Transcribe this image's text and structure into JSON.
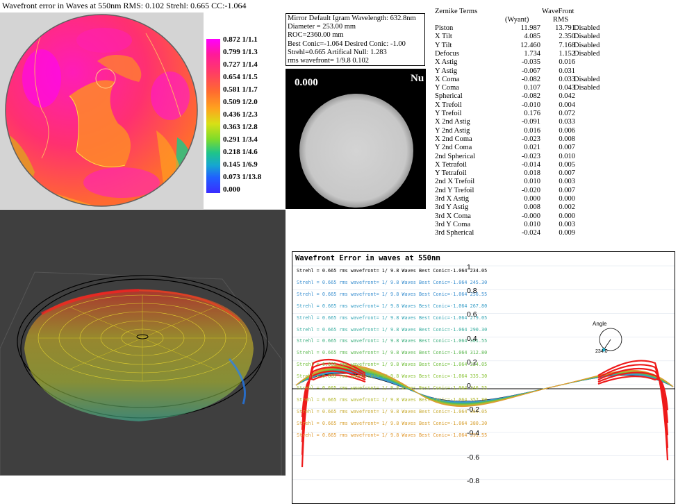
{
  "header": {
    "title": "Wavefront error in Waves at 550nm   RMS: 0.102 Strehl: 0.665 CC:-1.064"
  },
  "legend": {
    "labels": [
      "0.872 1/1.1",
      "0.799 1/1.3",
      "0.727 1/1.4",
      "0.654 1/1.5",
      "0.581 1/1.7",
      "0.509 1/2.0",
      "0.436 1/2.3",
      "0.363 1/2.8",
      "0.291 1/3.4",
      "0.218 1/4.6",
      "0.145 1/6.9",
      "0.073 1/13.8",
      "0.000"
    ]
  },
  "info": {
    "lines": [
      "Mirror Default Igram Wavelength:  632.8nm",
      "Diameter = 253.00 mm",
      "ROC=2360.00 mm",
      "Best Conic=-1.064 Desired Conic:  -1.00",
      " Strehl=0.665  Artifical Null:  1.283",
      "rms wavefront= 1/9.8  0.102"
    ]
  },
  "igram": {
    "value": "0.000",
    "null_label": "Nu"
  },
  "zernike": {
    "title": "Zernike Terms",
    "col_wavefront": "WaveFront",
    "col_wyant": "(Wyant)",
    "col_rms": "RMS",
    "rows": [
      {
        "name": "Piston",
        "wyant": "11.987",
        "rms": "13.791",
        "status": "Disabled"
      },
      {
        "name": "X Tilt",
        "wyant": "4.085",
        "rms": "2.350",
        "status": "Disabled"
      },
      {
        "name": "Y Tilt",
        "wyant": "12.460",
        "rms": "7.168",
        "status": "Disabled"
      },
      {
        "name": "Defocus",
        "wyant": "1.734",
        "rms": "1.152",
        "status": "Disabled"
      },
      {
        "name": "X Astig",
        "wyant": "-0.035",
        "rms": "0.016",
        "status": ""
      },
      {
        "name": "Y Astig",
        "wyant": "-0.067",
        "rms": "0.031",
        "status": ""
      },
      {
        "name": "X Coma",
        "wyant": "-0.082",
        "rms": "0.033",
        "status": "Disabled"
      },
      {
        "name": "Y Coma",
        "wyant": "0.107",
        "rms": "0.043",
        "status": "Disabled"
      },
      {
        "name": "Spherical",
        "wyant": "-0.082",
        "rms": "0.042",
        "status": ""
      },
      {
        "name": "X Trefoil",
        "wyant": "-0.010",
        "rms": "0.004",
        "status": ""
      },
      {
        "name": "Y Trefoil",
        "wyant": "0.176",
        "rms": "0.072",
        "status": ""
      },
      {
        "name": "X 2nd Astig",
        "wyant": "-0.091",
        "rms": "0.033",
        "status": ""
      },
      {
        "name": "Y 2nd Astig",
        "wyant": "0.016",
        "rms": "0.006",
        "status": ""
      },
      {
        "name": "X 2nd Coma",
        "wyant": "-0.023",
        "rms": "0.008",
        "status": ""
      },
      {
        "name": "Y 2nd Coma",
        "wyant": "0.021",
        "rms": "0.007",
        "status": ""
      },
      {
        "name": "2nd Spherical",
        "wyant": "-0.023",
        "rms": "0.010",
        "status": ""
      },
      {
        "name": "X Tetrafoil",
        "wyant": "-0.014",
        "rms": "0.005",
        "status": ""
      },
      {
        "name": "Y Tetrafoil",
        "wyant": "0.018",
        "rms": "0.007",
        "status": ""
      },
      {
        "name": "2nd X Trefoil",
        "wyant": "0.010",
        "rms": "0.003",
        "status": ""
      },
      {
        "name": "2nd Y Trefoil",
        "wyant": "-0.020",
        "rms": "0.007",
        "status": ""
      },
      {
        "name": "3rd X Astig",
        "wyant": "0.000",
        "rms": "0.000",
        "status": ""
      },
      {
        "name": "3rd Y Astig",
        "wyant": "0.008",
        "rms": "0.002",
        "status": ""
      },
      {
        "name": "3rd X Coma",
        "wyant": "-0.000",
        "rms": "0.000",
        "status": ""
      },
      {
        "name": "3rd Y Coma",
        "wyant": "0.010",
        "rms": "0.003",
        "status": ""
      },
      {
        "name": "3rd Spherical",
        "wyant": "-0.024",
        "rms": "0.009",
        "status": ""
      }
    ]
  },
  "profile": {
    "title": "Wavefront Error in waves at 550nm",
    "lines": [
      {
        "text": "Strehl = 0.665 rms wavefront= 1/ 9.8 Waves Best Conic=-1.064 234.05",
        "color": "#000000"
      },
      {
        "text": "Strehl = 0.665 rms wavefront= 1/ 9.8 Waves Best Conic=-1.064 245.30",
        "color": "#3a8fd0"
      },
      {
        "text": "Strehl = 0.665 rms wavefront= 1/ 9.8 Waves Best Conic=-1.064 256.55",
        "color": "#3a8fd0"
      },
      {
        "text": "Strehl = 0.665 rms wavefront= 1/ 9.8 Waves Best Conic=-1.064 267.80",
        "color": "#3a9fc8"
      },
      {
        "text": "Strehl = 0.665 rms wavefront= 1/ 9.8 Waves Best Conic=-1.064 279.05",
        "color": "#3aa8b8"
      },
      {
        "text": "Strehl = 0.665 rms wavefront= 1/ 9.8 Waves Best Conic=-1.064 290.30",
        "color": "#3aaea0"
      },
      {
        "text": "Strehl = 0.665 rms wavefront= 1/ 9.8 Waves Best Conic=-1.064 301.55",
        "color": "#40b080"
      },
      {
        "text": "Strehl = 0.665 rms wavefront= 1/ 9.8 Waves Best Conic=-1.064 312.80",
        "color": "#5cb850"
      },
      {
        "text": "Strehl = 0.665 rms wavefront= 1/ 9.8 Waves Best Conic=-1.064 324.05",
        "color": "#74c040"
      },
      {
        "text": "Strehl = 0.665 rms wavefront= 1/ 9.8 Waves Best Conic=-1.064 335.30",
        "color": "#8cc43a"
      },
      {
        "text": "Strehl = 0.665 rms wavefront= 1/ 9.8 Waves Best Conic=-1.064 346.55",
        "color": "#a0c030"
      },
      {
        "text": "Strehl = 0.665 rms wavefront= 1/ 9.8 Waves Best Conic=-1.064 357.80",
        "color": "#b4b830"
      },
      {
        "text": "Strehl = 0.665 rms wavefront= 1/ 9.8 Waves Best Conic=-1.064 369.05",
        "color": "#c8aa30"
      },
      {
        "text": "Strehl = 0.665 rms wavefront= 1/ 9.8 Waves Best Conic=-1.064 380.30",
        "color": "#d8a030"
      },
      {
        "text": "Strehl = 0.665 rms wavefront= 1/ 9.8 Waves Best Conic=-1.064 391.55",
        "color": "#e09830"
      }
    ],
    "yticks": [
      "1.",
      "0.8",
      "0.6",
      "0.4",
      "0.2",
      "0.",
      "-0.2",
      "-0.4",
      "-0.6",
      "-0.8"
    ],
    "angle_label": "Angle",
    "angle_value": "234.0"
  }
}
